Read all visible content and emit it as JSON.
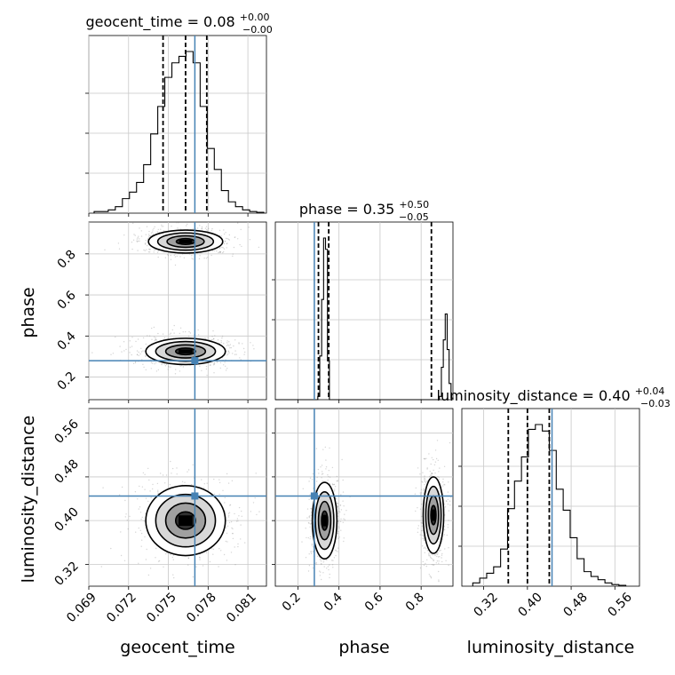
{
  "chart_data": {
    "type": "corner",
    "parameters": [
      "geocent_time",
      "phase",
      "luminosity_distance"
    ],
    "titles": [
      {
        "param": "geocent_time",
        "text": "geocent_time = 0.08",
        "sup": "+0.00",
        "sub": "−0.00"
      },
      {
        "param": "phase",
        "text": "phase = 0.35",
        "sup": "+0.50",
        "sub": "−0.05"
      },
      {
        "param": "luminosity_distance",
        "text": "luminosity_distance = 0.40",
        "sup": "+0.04",
        "sub": "−0.03"
      }
    ],
    "axis_labels": {
      "geocent_time": "geocent_time",
      "phase": "phase",
      "luminosity_distance": "luminosity_distance"
    },
    "ranges": {
      "geocent_time": [
        0.069,
        0.0824
      ],
      "phase": [
        0.09,
        0.955
      ],
      "luminosity_distance": [
        0.28,
        0.605
      ]
    },
    "ticks": {
      "geocent_time": [
        "0.069",
        "0.072",
        "0.075",
        "0.078",
        "0.081"
      ],
      "phase": [
        "0.2",
        "0.4",
        "0.6",
        "0.8"
      ],
      "luminosity_distance": [
        "0.32",
        "0.40",
        "0.48",
        "0.56"
      ]
    },
    "injection": {
      "geocent_time": 0.077,
      "phase": 0.28,
      "luminosity_distance": 0.445
    },
    "quantiles": {
      "geocent_time": [
        0.0746,
        0.0763,
        0.0779
      ],
      "phase": [
        0.3,
        0.35,
        0.85
      ],
      "luminosity_distance": [
        0.365,
        0.4,
        0.44
      ]
    },
    "histograms": {
      "geocent_time": [
        0.01,
        0.01,
        0.02,
        0.04,
        0.09,
        0.13,
        0.19,
        0.3,
        0.49,
        0.66,
        0.84,
        0.93,
        0.97,
        1.0,
        0.93,
        0.66,
        0.4,
        0.27,
        0.14,
        0.07,
        0.04,
        0.02,
        0.01,
        0.005
      ],
      "phase": [
        0.0,
        0.0,
        0.0,
        0.0,
        0.0,
        0.0,
        0.0,
        0.0,
        0.0,
        0.0,
        0.0,
        0.0,
        0.0,
        0.0,
        0.0,
        0.0,
        0.0,
        0.0,
        0.0,
        0.0,
        0.0,
        0.0,
        0.02,
        0.27,
        0.62,
        1.0,
        0.93,
        0.24,
        0.0,
        0.0,
        0.0,
        0.0,
        0.0,
        0.0,
        0.0,
        0.0,
        0.0,
        0.0,
        0.0,
        0.0,
        0.0,
        0.0,
        0.0,
        0.0,
        0.0,
        0.0,
        0.0,
        0.0,
        0.0,
        0.0,
        0.0,
        0.0,
        0.0,
        0.0,
        0.0,
        0.0,
        0.0,
        0.0,
        0.0,
        0.0,
        0.0,
        0.0,
        0.0,
        0.0,
        0.0,
        0.0,
        0.0,
        0.0,
        0.0,
        0.0,
        0.0,
        0.0,
        0.0,
        0.0,
        0.0,
        0.0,
        0.0,
        0.0,
        0.0,
        0.0,
        0.0,
        0.0,
        0.0,
        0.0,
        0.0,
        0.02,
        0.2,
        0.37,
        0.53,
        0.31,
        0.1,
        0.01
      ],
      "luminosity_distance": [
        0.02,
        0.05,
        0.08,
        0.12,
        0.23,
        0.48,
        0.65,
        0.8,
        0.97,
        1.0,
        0.96,
        0.84,
        0.6,
        0.47,
        0.3,
        0.17,
        0.09,
        0.06,
        0.04,
        0.02,
        0.01,
        0.005
      ]
    },
    "blobs": [
      {
        "x": "geocent_time",
        "y": "phase",
        "cx": 0.0763,
        "cy": 0.86,
        "sx": 0.0014,
        "sy": 0.028
      },
      {
        "x": "geocent_time",
        "y": "phase",
        "cx": 0.0763,
        "cy": 0.325,
        "sx": 0.0015,
        "sy": 0.032
      },
      {
        "x": "geocent_time",
        "y": "luminosity_distance",
        "cx": 0.0763,
        "cy": 0.4,
        "sx": 0.0015,
        "sy": 0.032
      },
      {
        "x": "phase",
        "y": "luminosity_distance",
        "cx": 0.33,
        "cy": 0.4,
        "sx": 0.03,
        "sy": 0.035
      },
      {
        "x": "phase",
        "y": "luminosity_distance",
        "cx": 0.86,
        "cy": 0.41,
        "sx": 0.025,
        "sy": 0.035
      }
    ],
    "colors": {
      "injection": "#4682b4",
      "hist": "#000000",
      "scatter": "#888888",
      "grid": "#c8c8c8"
    },
    "grid": true
  }
}
